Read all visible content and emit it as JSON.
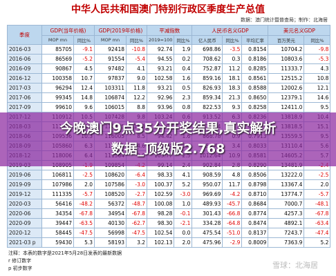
{
  "header": {
    "title": "中华人民共和国澳门特别行政区季度生产总值",
    "source": "数据：澳门统计暨普查局；制作：北海居"
  },
  "table": {
    "columns": [
      "季度",
      "GDP(当年价格)",
      "GDP(2019年价格)",
      "平减指数",
      "人民币名义GDP",
      "美元名义GDP"
    ],
    "subcolumns": [
      "MOP mn",
      "同比%",
      "MOP mn",
      "同比%",
      "2019=100",
      "同比%",
      "亿人民币",
      "同比%",
      "平均汇率",
      "百万美元",
      "同比%"
    ],
    "rows": [
      [
        "2016-03",
        "85705",
        "-9.1",
        "92418",
        "-10.8",
        "92.74",
        "1.9",
        "698.86",
        "-3.5",
        "0.8154",
        "10704.2",
        "-9.8"
      ],
      [
        "2016-06",
        "86569",
        "-5.2",
        "91554",
        "-5.4",
        "94.55",
        "0.2",
        "708.62",
        "0.3",
        "0.8186",
        "10803.6",
        "-5.3"
      ],
      [
        "2016-09",
        "90867",
        "4.5",
        "97482",
        "4.1",
        "93.21",
        "0.4",
        "752.87",
        "11.2",
        "0.8285",
        "11333.7",
        "4.3"
      ],
      [
        "2016-12",
        "100358",
        "10.7",
        "97837",
        "9.0",
        "102.58",
        "1.6",
        "859.16",
        "18.1",
        "0.8561",
        "12515.2",
        "10.8"
      ],
      [
        "2017-03",
        "96294",
        "12.4",
        "103311",
        "11.8",
        "93.21",
        "0.5",
        "826.93",
        "18.3",
        "0.8588",
        "12002.6",
        "12.1"
      ],
      [
        "2017-06",
        "99345",
        "14.8",
        "106874",
        "12.2",
        "92.96",
        "2.3",
        "859.34",
        "21.3",
        "0.8650",
        "12379.1",
        "14.6"
      ],
      [
        "2017-09",
        "99610",
        "9.6",
        "106015",
        "8.8",
        "93.96",
        "0.8",
        "822.53",
        "9.3",
        "0.8258",
        "12411.0",
        "9.5"
      ],
      [
        "2017-12",
        "110912",
        "10.5",
        "107428",
        "9.8",
        "103.24",
        "0.6",
        "913.52",
        "6.3",
        "0.8236",
        "13818.9",
        "10.4"
      ],
      [
        "2018-03",
        "111027",
        "15.3",
        "114695",
        "11.0",
        "96.80",
        "3.9",
        "878.54",
        "6.2",
        "0.7913",
        "13818.5",
        "15.1"
      ],
      [
        "2018-06",
        "109536",
        "10.3",
        "116005",
        "8.5",
        "94.42",
        "1.6",
        "866.78",
        "0.9",
        "0.7913",
        "13559.5",
        "9.5"
      ],
      [
        "2018-09",
        "105860",
        "6.3",
        "110921",
        "4.6",
        "95.44",
        "1.6",
        "850.40",
        "3.4",
        "0.8033",
        "13110.4",
        "5.6"
      ],
      [
        "2018-12",
        "118006",
        "6.4",
        "111564",
        "3.9",
        "105.77",
        "2.5",
        "1012.64",
        "10.9",
        "0.8581",
        "14605.2",
        "5.7"
      ],
      [
        "2019-03",
        "108905",
        "-1.9",
        "109854",
        "-4.2",
        "99.14",
        "2.4",
        "902.84",
        "2.8",
        "0.8290",
        "13481.9",
        "-2.4"
      ],
      [
        "2019-06",
        "106811",
        "-2.5",
        "108620",
        "-6.4",
        "98.33",
        "4.1",
        "908.59",
        "4.8",
        "0.8506",
        "13222.0",
        "-2.5"
      ],
      [
        "2019-09",
        "107986",
        "2.0",
        "107586",
        "-3.0",
        "100.37",
        "5.2",
        "950.07",
        "11.7",
        "0.8798",
        "13367.4",
        "2.0"
      ],
      [
        "2019-12",
        "111335",
        "-5.7",
        "108520",
        "-2.7",
        "102.59",
        "-3.0",
        "969.69",
        "-4.2",
        "0.8710",
        "13774.7",
        "-5.7"
      ],
      [
        "2020-03",
        "56416",
        "-48.2",
        "56372",
        "-48.7",
        "100.08",
        "1.0",
        "489.93",
        "-45.7",
        "0.8684",
        "7000.7",
        "-48.1"
      ],
      [
        "2020-06",
        "34354",
        "-67.8",
        "34954",
        "-67.8",
        "98.28",
        "-0.1",
        "301.43",
        "-66.8",
        "0.8774",
        "4257.3",
        "-67.8"
      ],
      [
        "2020-09",
        "39447",
        "-63.5",
        "40130",
        "-62.7",
        "98.30",
        "-2.1",
        "334.28",
        "-64.8",
        "0.8474",
        "4892.1",
        "-63.4"
      ],
      [
        "2020-12",
        "58445",
        "-47.5",
        "56998",
        "-47.5",
        "102.54",
        "0.0",
        "475.54",
        "-51.0",
        "0.8137",
        "7243.7",
        "-47.4"
      ],
      [
        "2021-03 p",
        "59430",
        "5.3",
        "58193",
        "3.2",
        "102.13",
        "2.0",
        "475.96",
        "-2.9",
        "0.8009",
        "7363.9",
        "5.2"
      ]
    ]
  },
  "notes": [
    "注释：本表的数字是2021年5月28日发表的最新数据",
    "r   修订数字",
    "p   初步数字"
  ],
  "overlay": [
    "今晚澳门9点35分开奖结果,真实解析",
    "数据_顶级版2.768"
  ],
  "watermark": "雪球：北海居"
}
